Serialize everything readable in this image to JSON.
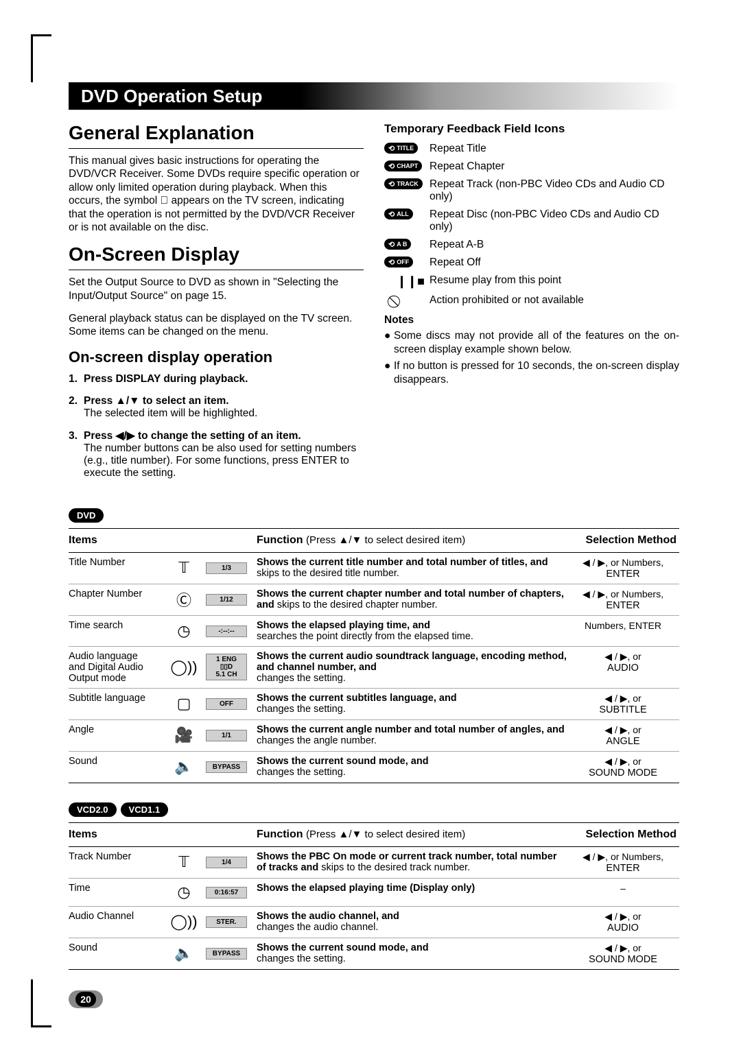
{
  "page_number": "20",
  "title_bar": "DVD Operation Setup",
  "section1": {
    "heading": "General Explanation",
    "body": "This manual gives basic instructions for operating the DVD/VCR Receiver. Some DVDs require specific operation or allow only limited operation during playback. When this occurs, the symbol ⃠ appears on the TV screen, indicating that the operation is not permitted by the DVD/VCR Receiver or is not available on the disc."
  },
  "section2": {
    "heading": "On-Screen Display",
    "p1": "Set the Output Source to DVD as shown in \"Selecting the Input/Output Source\" on page 15.",
    "p2": "General playback status can be displayed on the TV screen. Some items can be changed on the menu."
  },
  "operation": {
    "heading": "On-screen display operation",
    "steps": [
      {
        "num": "1.",
        "lead": "Press DISPLAY during playback.",
        "body": ""
      },
      {
        "num": "2.",
        "lead": "Press ▲/▼ to select an item.",
        "body": "The selected item will be highlighted."
      },
      {
        "num": "3.",
        "lead": "Press ◀/▶ to change the setting of an item.",
        "body": "The number buttons can be also used for setting numbers (e.g., title number). For some functions, press ENTER to execute the setting."
      }
    ]
  },
  "feedback": {
    "heading": "Temporary Feedback Field Icons",
    "rows": [
      {
        "icon_type": "pill",
        "icon_label": "TITLE",
        "text": "Repeat Title"
      },
      {
        "icon_type": "pill",
        "icon_label": "CHAPT",
        "text": "Repeat Chapter"
      },
      {
        "icon_type": "pill",
        "icon_label": "TRACK",
        "text": "Repeat Track (non-PBC Video CDs and Audio CD only)"
      },
      {
        "icon_type": "pill",
        "icon_label": "ALL",
        "text": "Repeat Disc (non-PBC Video CDs and Audio CD only)"
      },
      {
        "icon_type": "pill",
        "icon_label": "A B",
        "text": "Repeat A-B"
      },
      {
        "icon_type": "pill",
        "icon_label": "OFF",
        "text": "Repeat Off"
      },
      {
        "icon_type": "sym",
        "icon_label": "❙❙■",
        "text": "Resume play from this point"
      },
      {
        "icon_type": "sym",
        "icon_label": "⃠",
        "text": "Action prohibited or not available"
      }
    ],
    "notes_heading": "Notes",
    "notes": [
      "Some discs may not provide all of the features on the on-screen display example shown below.",
      "If no button is pressed for 10 seconds, the on-screen display disappears."
    ]
  },
  "table_header": {
    "items": "Items",
    "function": "Function",
    "function_sub": "(Press ▲/▼ to select desired item)",
    "selection": "Selection Method"
  },
  "dvd_badge": "DVD",
  "dvd_rows": [
    {
      "item": "Title Number",
      "icon": "T",
      "value": "1/3",
      "func_b": "Shows the current title number and total number of titles, and",
      "func_r": " skips to the desired title number.",
      "sel1": "◀ / ▶, or Numbers,",
      "sel2": "ENTER"
    },
    {
      "item": "Chapter Number",
      "icon": "C",
      "value": "1/12",
      "func_b": "Shows the current chapter number and total number of chapters, and",
      "func_r": " skips to the desired chapter number.",
      "sel1": "◀ / ▶, or Numbers,",
      "sel2": "ENTER"
    },
    {
      "item": "Time search",
      "icon": "⏱",
      "value": "-:--:--",
      "func_b": "Shows the elapsed playing time, and",
      "func_r": "\nsearches the point directly from the elapsed time.",
      "sel1": "Numbers, ENTER",
      "sel2": ""
    },
    {
      "item": "Audio language\nand Digital Audio\nOutput mode",
      "icon": "◯))",
      "value": "1   ENG\n▯▯D\n5.1  CH",
      "func_b": "Shows the current audio soundtrack language, encoding method, and channel number, and",
      "func_r": "\nchanges the setting.",
      "sel1": "◀ / ▶, or",
      "sel2": "AUDIO"
    },
    {
      "item": "Subtitle language",
      "icon": "⎚",
      "value": "OFF",
      "func_b": "Shows the current subtitles language, and",
      "func_r": "\nchanges the setting.",
      "sel1": "◀ / ▶, or",
      "sel2": "SUBTITLE"
    },
    {
      "item": "Angle",
      "icon": "🎥",
      "value": "1/1",
      "func_b": "Shows the current angle number and total number of angles, and",
      "func_r": " changes the angle number.",
      "sel1": "◀ / ▶, or",
      "sel2": "ANGLE"
    },
    {
      "item": "Sound",
      "icon": "🔈",
      "value": "BYPASS",
      "func_b": "Shows the current sound mode, and",
      "func_r": "\nchanges the setting.",
      "sel1": "◀ / ▶, or",
      "sel2": "SOUND MODE"
    }
  ],
  "vcd_badges": [
    "VCD2.0",
    "VCD1.1"
  ],
  "vcd_rows": [
    {
      "item": "Track Number",
      "icon": "T",
      "value": "1/4",
      "func_b": "Shows the PBC On mode or current track number, total number of tracks and",
      "func_r": " skips to the desired track number.",
      "sel1": "◀ / ▶, or Numbers,",
      "sel2": "ENTER"
    },
    {
      "item": "Time",
      "icon": "⏱",
      "value": "0:16:57",
      "func_b": "Shows the elapsed playing time (Display only)",
      "func_r": "",
      "sel1": "–",
      "sel2": ""
    },
    {
      "item": "Audio Channel",
      "icon": "◯))",
      "value": "STER.",
      "func_b": "Shows the audio channel, and",
      "func_r": "\nchanges the audio channel.",
      "sel1": "◀ / ▶, or",
      "sel2": "AUDIO"
    },
    {
      "item": "Sound",
      "icon": "🔈",
      "value": "BYPASS",
      "func_b": "Shows the current sound mode, and",
      "func_r": "\nchanges the setting.",
      "sel1": "◀ / ▶, or",
      "sel2": "SOUND MODE"
    }
  ]
}
